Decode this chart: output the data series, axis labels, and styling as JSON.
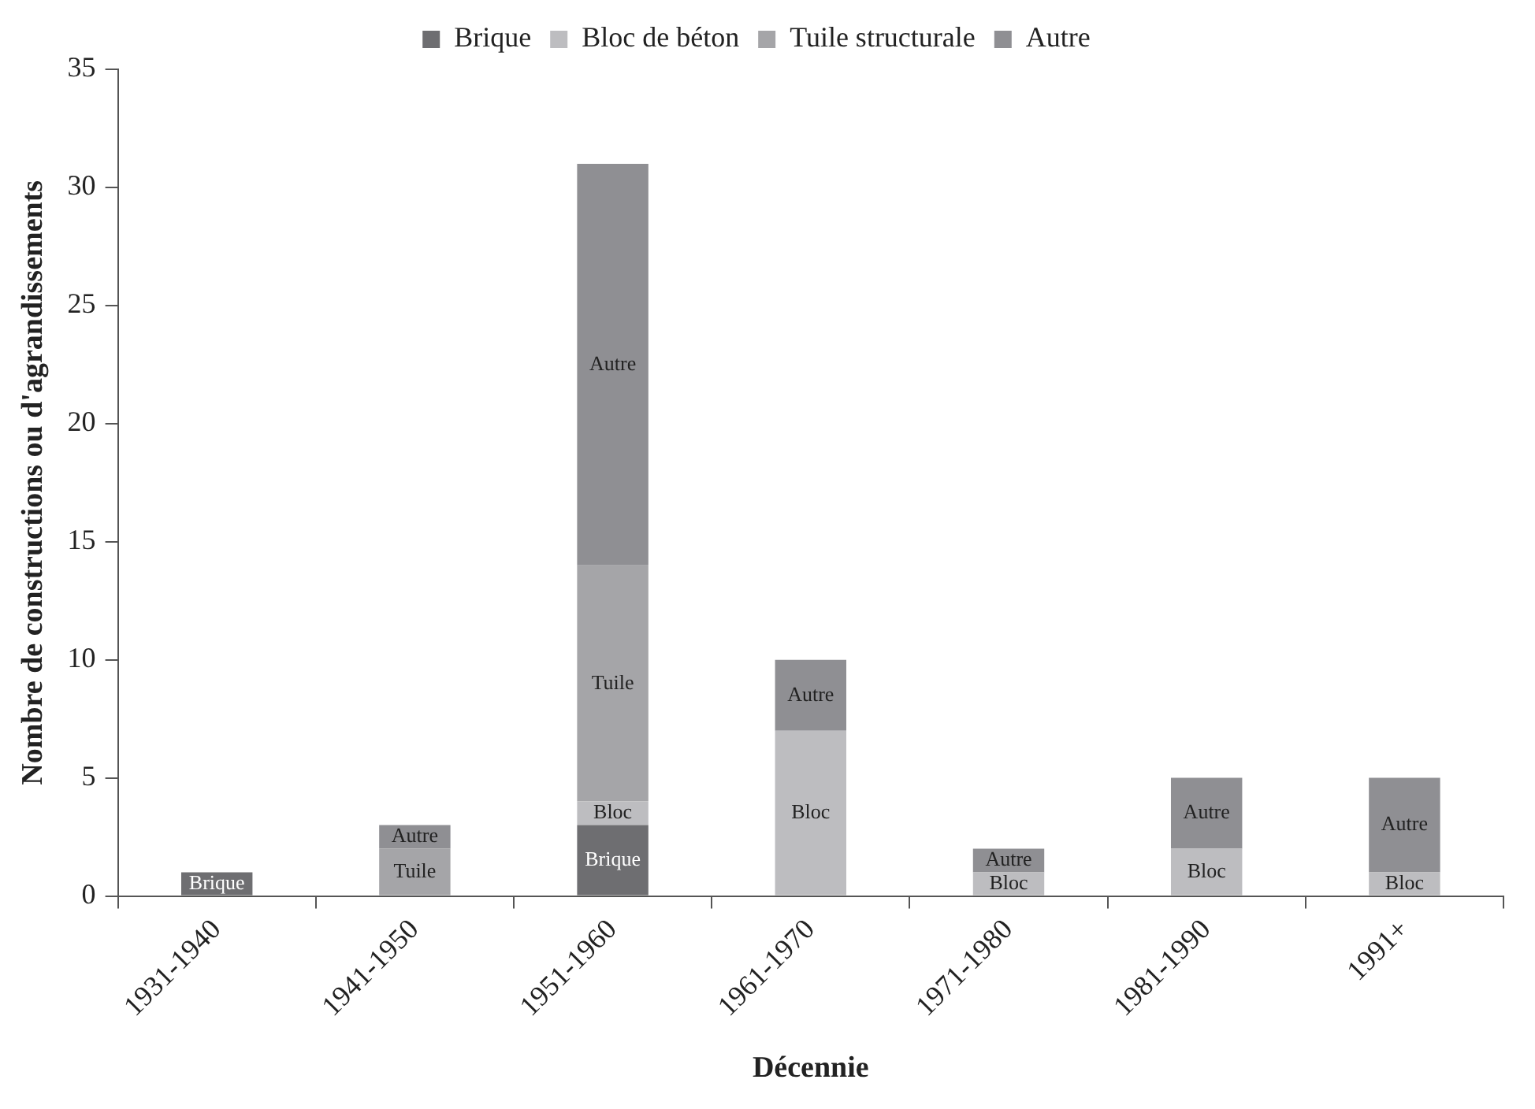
{
  "chart_data": {
    "type": "bar",
    "stacked": true,
    "xlabel": "Décennie",
    "ylabel": "Nombre de constructions ou d'agrandissements",
    "categories": [
      "1931-1940",
      "1941-1950",
      "1951-1960",
      "1961-1970",
      "1971-1980",
      "1981-1990",
      "1991+"
    ],
    "series": [
      {
        "name": "Brique",
        "color": "#6e6e71",
        "values": [
          1,
          0,
          3,
          0,
          0,
          0,
          0
        ],
        "value_labels": [
          "Brique",
          null,
          "Brique",
          null,
          null,
          null,
          null
        ]
      },
      {
        "name": "Bloc de béton",
        "color": "#bdbdc0",
        "values": [
          0,
          0,
          1,
          7,
          1,
          2,
          1
        ],
        "value_labels": [
          null,
          null,
          "Bloc",
          "Bloc",
          "Bloc",
          "Bloc",
          "Bloc"
        ]
      },
      {
        "name": "Tuile structurale",
        "color": "#a5a5a8",
        "values": [
          0,
          2,
          10,
          0,
          0,
          0,
          0
        ],
        "value_labels": [
          null,
          "Tuile",
          "Tuile",
          null,
          null,
          null,
          null
        ]
      },
      {
        "name": "Autre",
        "color": "#8f8f93",
        "values": [
          0,
          1,
          17,
          3,
          1,
          3,
          4
        ],
        "value_labels": [
          null,
          "Autre",
          "Autre",
          "Autre",
          "Autre",
          "Autre",
          "Autre"
        ]
      }
    ],
    "ylim": [
      0,
      35
    ],
    "yticks": [
      0,
      5,
      10,
      15,
      20,
      25,
      30,
      35
    ],
    "grid": false,
    "legend": "top"
  }
}
